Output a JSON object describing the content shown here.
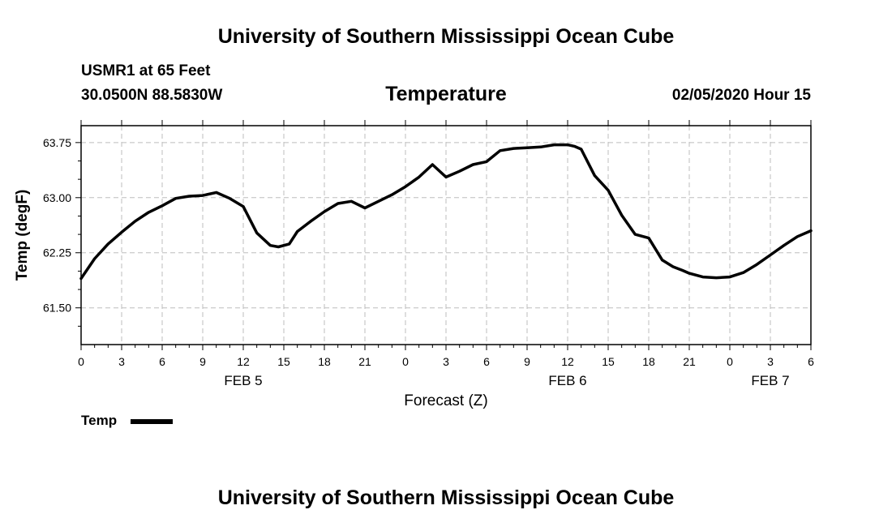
{
  "page": {
    "top_title": "University of Southern Mississippi Ocean Cube",
    "bottom_title": "University of Southern Mississippi Ocean Cube",
    "station": "USMR1 at 65 Feet",
    "coords": "30.0500N 88.5830W",
    "timestamp": "02/05/2020 Hour 15"
  },
  "chart_data": {
    "type": "line",
    "title": "Temperature",
    "xlabel": "Forecast (Z)",
    "ylabel": "Temp (degF)",
    "xlim": [
      0,
      54
    ],
    "ylim": [
      61.0,
      63.98
    ],
    "yticks": [
      61.5,
      62.25,
      63.0,
      63.75
    ],
    "ytick_labels": [
      "61.50",
      "62.25",
      "63.00",
      "63.75"
    ],
    "xticks": [
      0,
      3,
      6,
      9,
      12,
      15,
      18,
      21,
      24,
      27,
      30,
      33,
      36,
      39,
      42,
      45,
      48,
      51,
      54
    ],
    "xtick_labels": [
      "0",
      "3",
      "6",
      "9",
      "12",
      "15",
      "18",
      "21",
      "0",
      "3",
      "6",
      "9",
      "12",
      "15",
      "18",
      "21",
      "0",
      "3",
      "6"
    ],
    "date_labels": [
      {
        "x": 12,
        "label": "FEB 5"
      },
      {
        "x": 36,
        "label": "FEB 6"
      },
      {
        "x": 51,
        "label": "FEB 7"
      }
    ],
    "grid": true,
    "legend": {
      "position": "bottom-left",
      "label": "Temp"
    },
    "series": [
      {
        "name": "Temp",
        "color": "#000000",
        "x": [
          0,
          1,
          2,
          3,
          4,
          5,
          6,
          7,
          8,
          9,
          10,
          11,
          12,
          13,
          14,
          14.6,
          15.4,
          16,
          17,
          18,
          19,
          20,
          21,
          22,
          23,
          24,
          25,
          26,
          27,
          28,
          29,
          30,
          31,
          32,
          33,
          34,
          35,
          36,
          36.5,
          37,
          38,
          39,
          40,
          41,
          42,
          43,
          43.8,
          44.5,
          45,
          46,
          47,
          48,
          49,
          50,
          51,
          52,
          53,
          54
        ],
        "values": [
          61.9,
          62.17,
          62.37,
          62.53,
          62.68,
          62.8,
          62.89,
          62.99,
          63.02,
          63.03,
          63.07,
          62.99,
          62.88,
          62.52,
          62.35,
          62.33,
          62.37,
          62.54,
          62.68,
          62.81,
          62.92,
          62.95,
          62.86,
          62.95,
          63.04,
          63.15,
          63.28,
          63.45,
          63.28,
          63.36,
          63.45,
          63.49,
          63.64,
          63.67,
          63.68,
          63.69,
          63.72,
          63.72,
          63.7,
          63.66,
          63.3,
          63.1,
          62.76,
          62.5,
          62.45,
          62.15,
          62.06,
          62.01,
          61.97,
          61.92,
          61.91,
          61.92,
          61.98,
          62.09,
          62.22,
          62.35,
          62.47,
          62.55
        ]
      }
    ]
  }
}
